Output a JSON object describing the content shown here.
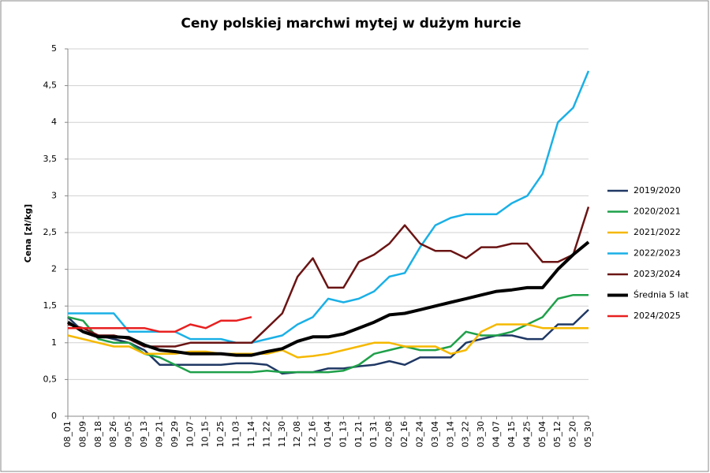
{
  "chart_data": {
    "type": "line",
    "title": "Ceny polskiej marchwi mytej w dużym hurcie",
    "y_label": "Cena [zł/kg]",
    "categories": [
      "08_01",
      "08_09",
      "08_18",
      "08_26",
      "09_05",
      "09_13",
      "09_21",
      "09_29",
      "10_07",
      "10_15",
      "10_25",
      "11_03",
      "11_14",
      "11_22",
      "11_30",
      "12_08",
      "12_16",
      "01_04",
      "01_13",
      "01_21",
      "01_31",
      "02_08",
      "02_16",
      "02_24",
      "03_04",
      "03_14",
      "03_22",
      "03_30",
      "04_07",
      "04_15",
      "04_25",
      "05_04",
      "05_12",
      "05_20",
      "05_30"
    ],
    "ylim": [
      0,
      5
    ],
    "yticks": [
      0,
      {
        "value": 0.5,
        "label": "0,5"
      },
      1,
      {
        "value": 1.5,
        "label": "1,5"
      },
      2,
      {
        "value": 2.5,
        "label": "2,5"
      },
      3,
      {
        "value": 3.5,
        "label": "3,5"
      },
      4,
      {
        "value": 4.5,
        "label": "4,5"
      },
      5
    ],
    "grid": true,
    "legend": "right",
    "series": [
      {
        "name": "2019/2020",
        "color": "#1f3864",
        "values": [
          1.35,
          1.15,
          1.1,
          1.05,
          1.0,
          0.9,
          0.7,
          0.7,
          0.7,
          0.7,
          0.7,
          0.72,
          0.72,
          0.7,
          0.58,
          0.6,
          0.6,
          0.65,
          0.65,
          0.68,
          0.7,
          0.75,
          0.7,
          0.8,
          0.8,
          0.8,
          1.0,
          1.05,
          1.1,
          1.1,
          1.05,
          1.05,
          1.25,
          1.25,
          1.45
        ]
      },
      {
        "name": "2020/2021",
        "color": "#1fa04a",
        "values": [
          1.35,
          1.3,
          1.05,
          1.0,
          1.0,
          0.85,
          0.8,
          0.7,
          0.6,
          0.6,
          0.6,
          0.6,
          0.6,
          0.62,
          0.6,
          0.6,
          0.6,
          0.6,
          0.62,
          0.7,
          0.85,
          0.9,
          0.95,
          0.9,
          0.9,
          0.95,
          1.15,
          1.1,
          1.1,
          1.15,
          1.25,
          1.35,
          1.6,
          1.65,
          1.65
        ]
      },
      {
        "name": "2021/2022",
        "color": "#f5b800",
        "values": [
          1.1,
          1.05,
          1.0,
          0.95,
          0.95,
          0.85,
          0.85,
          0.85,
          0.88,
          0.88,
          0.85,
          0.85,
          0.85,
          0.85,
          0.9,
          0.8,
          0.82,
          0.85,
          0.9,
          0.95,
          1.0,
          1.0,
          0.95,
          0.95,
          0.95,
          0.85,
          0.9,
          1.15,
          1.25,
          1.25,
          1.25,
          1.2,
          1.2,
          1.2,
          1.2
        ]
      },
      {
        "name": "2022/2023",
        "color": "#1ab0e6",
        "values": [
          1.4,
          1.4,
          1.4,
          1.4,
          1.15,
          1.15,
          1.15,
          1.15,
          1.05,
          1.05,
          1.05,
          1.0,
          1.0,
          1.05,
          1.1,
          1.25,
          1.35,
          1.6,
          1.55,
          1.6,
          1.7,
          1.9,
          1.95,
          2.3,
          2.6,
          2.7,
          2.75,
          2.75,
          2.75,
          2.9,
          3.0,
          3.3,
          4.0,
          4.2,
          4.7
        ]
      },
      {
        "name": "2023/2024",
        "color": "#6b1414",
        "values": [
          1.25,
          1.2,
          1.1,
          1.1,
          1.05,
          0.95,
          0.95,
          0.95,
          1.0,
          1.0,
          1.0,
          1.0,
          1.0,
          1.2,
          1.4,
          1.9,
          2.15,
          1.75,
          1.75,
          2.1,
          2.2,
          2.35,
          2.6,
          2.35,
          2.25,
          2.25,
          2.15,
          2.3,
          2.3,
          2.35,
          2.35,
          2.1,
          2.1,
          2.2,
          2.85
        ]
      },
      {
        "name": "Średnia 5 lat",
        "color": "#000000",
        "values": [
          1.28,
          1.15,
          1.08,
          1.08,
          1.07,
          0.97,
          0.9,
          0.88,
          0.85,
          0.85,
          0.85,
          0.83,
          0.83,
          0.88,
          0.92,
          1.02,
          1.08,
          1.08,
          1.12,
          1.2,
          1.28,
          1.38,
          1.4,
          1.45,
          1.5,
          1.55,
          1.6,
          1.65,
          1.7,
          1.72,
          1.75,
          1.75,
          2.0,
          2.2,
          2.37
        ]
      },
      {
        "name": "2024/2025",
        "color": "#e82020",
        "values": [
          1.2,
          1.2,
          1.2,
          1.2,
          1.2,
          1.2,
          1.15,
          1.15,
          1.25,
          1.2,
          1.3,
          1.3,
          1.35,
          null,
          null,
          null,
          null,
          null,
          null,
          null,
          null,
          null,
          null,
          null,
          null,
          null,
          null,
          null,
          null,
          null,
          null,
          null,
          null,
          null,
          null
        ]
      }
    ]
  }
}
